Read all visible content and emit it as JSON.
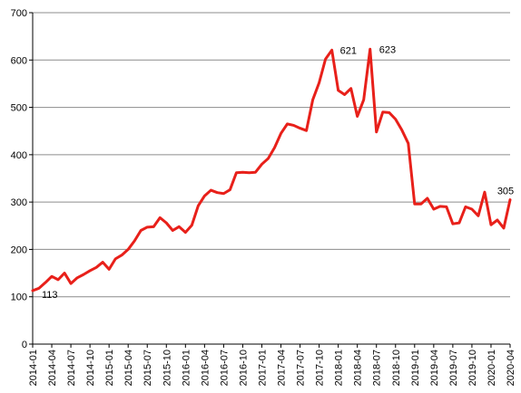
{
  "chart_data": {
    "type": "line",
    "title": "",
    "xlabel": "",
    "ylabel": "",
    "ylim": [
      0,
      700
    ],
    "yticks": [
      0,
      100,
      200,
      300,
      400,
      500,
      600,
      700
    ],
    "grid": "horizontal",
    "series": [
      {
        "color": "#e8201a",
        "x": [
          "2014-01",
          "2014-02",
          "2014-03",
          "2014-04",
          "2014-05",
          "2014-06",
          "2014-07",
          "2014-08",
          "2014-09",
          "2014-10",
          "2014-11",
          "2014-12",
          "2015-01",
          "2015-02",
          "2015-03",
          "2015-04",
          "2015-05",
          "2015-06",
          "2015-07",
          "2015-08",
          "2015-09",
          "2015-10",
          "2015-11",
          "2015-12",
          "2016-01",
          "2016-02",
          "2016-03",
          "2016-04",
          "2016-05",
          "2016-06",
          "2016-07",
          "2016-08",
          "2016-09",
          "2016-10",
          "2016-11",
          "2016-12",
          "2017-01",
          "2017-02",
          "2017-03",
          "2017-04",
          "2017-05",
          "2017-06",
          "2017-07",
          "2017-08",
          "2017-09",
          "2017-10",
          "2017-11",
          "2017-12",
          "2018-01",
          "2018-02",
          "2018-03",
          "2018-04",
          "2018-05",
          "2018-06",
          "2018-07",
          "2018-08",
          "2018-09",
          "2018-10",
          "2018-11",
          "2018-12",
          "2019-01",
          "2019-02",
          "2019-03",
          "2019-04",
          "2019-05",
          "2019-06",
          "2019-07",
          "2019-08",
          "2019-09",
          "2019-10",
          "2019-11",
          "2019-12",
          "2020-01",
          "2020-02",
          "2020-03",
          "2020-04"
        ],
        "values": [
          113,
          118,
          130,
          143,
          136,
          150,
          128,
          140,
          147,
          155,
          162,
          173,
          158,
          180,
          188,
          200,
          218,
          240,
          247,
          248,
          267,
          256,
          240,
          248,
          236,
          251,
          292,
          313,
          325,
          320,
          318,
          326,
          362,
          363,
          362,
          363,
          380,
          392,
          415,
          445,
          465,
          462,
          456,
          451,
          516,
          552,
          602,
          621,
          536,
          527,
          540,
          481,
          516,
          623,
          448,
          490,
          489,
          475,
          452,
          424,
          296,
          296,
          308,
          285,
          291,
          290,
          254,
          256,
          290,
          285,
          271,
          321,
          252,
          262,
          245,
          305
        ]
      }
    ],
    "annotations": [
      {
        "label": "113",
        "index": 0
      },
      {
        "label": "621",
        "index": 47
      },
      {
        "label": "623",
        "index": 53
      },
      {
        "label": "305",
        "index": 75
      }
    ],
    "xtick_labels": [
      "2014-01",
      "2014-04",
      "2014-07",
      "2014-10",
      "2015-01",
      "2015-04",
      "2015-07",
      "2015-10",
      "2016-01",
      "2016-04",
      "2016-07",
      "2016-10",
      "2017-01",
      "2017-04",
      "2017-07",
      "2017-10",
      "2018-01",
      "2018-04",
      "2018-07",
      "2018-10",
      "2019-01",
      "2019-04",
      "2019-07",
      "2019-10",
      "2020-01",
      "2020-04"
    ]
  }
}
